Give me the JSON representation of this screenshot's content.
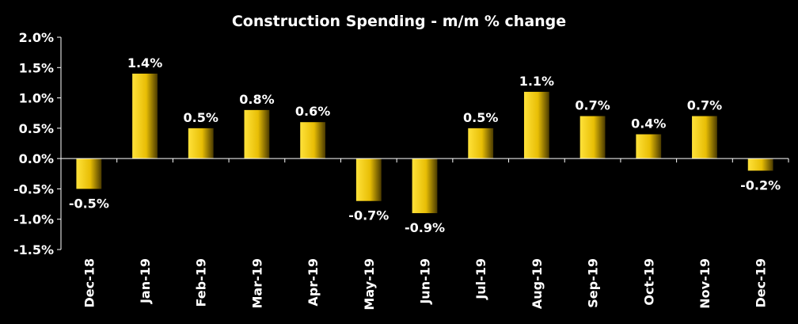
{
  "chart_data": {
    "type": "bar",
    "title": "Construction Spending - m/m % change",
    "xlabel": "",
    "ylabel": "",
    "categories": [
      "Dec-18",
      "Jan-19",
      "Feb-19",
      "Mar-19",
      "Apr-19",
      "May-19",
      "Jun-19",
      "Jul-19",
      "Aug-19",
      "Sep-19",
      "Oct-19",
      "Nov-19",
      "Dec-19"
    ],
    "values": [
      -0.5,
      1.4,
      0.5,
      0.8,
      0.6,
      -0.7,
      -0.9,
      0.5,
      1.1,
      0.7,
      0.4,
      0.7,
      -0.2
    ],
    "data_labels": [
      "-0.5%",
      "1.4%",
      "0.5%",
      "0.8%",
      "0.6%",
      "-0.7%",
      "-0.9%",
      "0.5%",
      "1.1%",
      "0.7%",
      "0.4%",
      "0.7%",
      "-0.2%"
    ],
    "ylim": [
      -1.5,
      2.0
    ],
    "yticks": [
      2.0,
      1.5,
      1.0,
      0.5,
      0.0,
      -0.5,
      -1.0,
      -1.5
    ],
    "ytick_labels": [
      "2.0%",
      "1.5%",
      "1.0%",
      "0.5%",
      "0.0%",
      "-0.5%",
      "-1.0%",
      "-1.5%"
    ],
    "grid": false,
    "legend": "none",
    "colors": {
      "background": "#000000",
      "bar_light": "#ffe23a",
      "bar_dark": "#4a3a00",
      "text": "#ffffff",
      "axis": "#ffffff"
    }
  }
}
